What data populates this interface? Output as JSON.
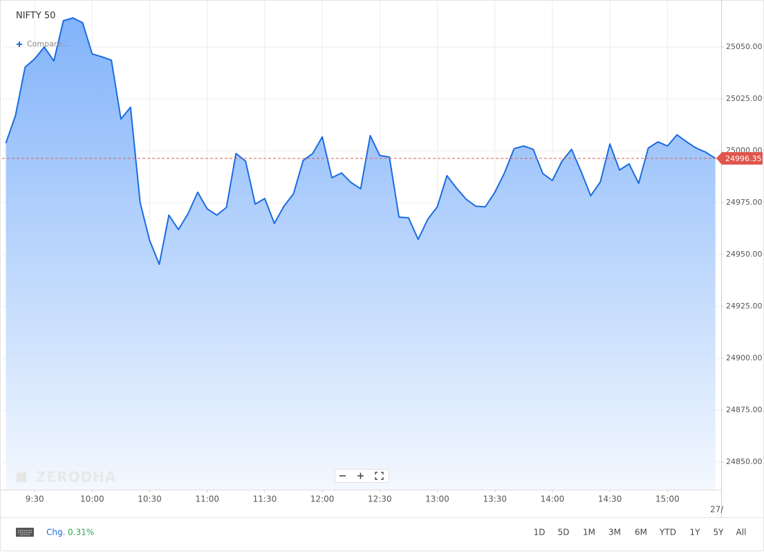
{
  "chart_data": {
    "type": "area",
    "title": "NIFTY 50",
    "compare_label": "Compare...",
    "watermark": "ZERODHA",
    "color": "#1a6be0",
    "grid": true,
    "x": [
      "9:15",
      "9:20",
      "9:25",
      "9:30",
      "9:35",
      "9:40",
      "9:45",
      "9:50",
      "9:55",
      "10:00",
      "10:05",
      "10:10",
      "10:15",
      "10:20",
      "10:25",
      "10:30",
      "10:35",
      "10:40",
      "10:45",
      "10:50",
      "10:55",
      "11:00",
      "11:05",
      "11:10",
      "11:15",
      "11:20",
      "11:25",
      "11:30",
      "11:35",
      "11:40",
      "11:45",
      "11:50",
      "11:55",
      "12:00",
      "12:05",
      "12:10",
      "12:15",
      "12:20",
      "12:25",
      "12:30",
      "12:35",
      "12:40",
      "12:45",
      "12:50",
      "12:55",
      "13:00",
      "13:05",
      "13:10",
      "13:15",
      "13:20",
      "13:25",
      "13:30",
      "13:35",
      "13:40",
      "13:45",
      "13:50",
      "13:55",
      "14:00",
      "14:05",
      "14:10",
      "14:15",
      "14:20",
      "14:25",
      "14:30",
      "14:35",
      "14:40",
      "14:45",
      "14:50",
      "14:55",
      "15:00",
      "15:05",
      "15:10",
      "15:15",
      "15:20",
      "15:25"
    ],
    "values": [
      25003.7,
      25017,
      25040.3,
      25044.3,
      25050,
      25043.3,
      25062.7,
      25064,
      25061.7,
      25046.7,
      25045.3,
      25043.7,
      25015.3,
      25021,
      24975,
      24956.7,
      24945.3,
      24969,
      24962,
      24969.7,
      24980,
      24972,
      24969,
      24972.7,
      24998.7,
      24995,
      24974.3,
      24977,
      24965,
      24973.3,
      24979.3,
      24995.3,
      24998.7,
      25006.7,
      24987,
      24989.3,
      24984.7,
      24981.7,
      25007.3,
      24997.7,
      24997,
      24968,
      24967.7,
      24957.3,
      24967,
      24973,
      24988,
      24982,
      24976.7,
      24973.3,
      24973,
      24980,
      24989.3,
      25001,
      25002.3,
      25000.7,
      24989,
      24985.7,
      24995,
      25000.7,
      24990,
      24978.3,
      24985,
      25003.3,
      24990.7,
      24993.7,
      24984.3,
      25001.3,
      25004.3,
      25002.3,
      25007.7,
      25004.3,
      25001.3,
      24999.3,
      24996.35
    ],
    "xlim": [
      "9:13",
      "15:28"
    ],
    "xticks": [
      "9:30",
      "10:00",
      "10:30",
      "11:00",
      "11:30",
      "12:00",
      "12:30",
      "13:00",
      "13:30",
      "14:00",
      "14:30",
      "15:00"
    ],
    "x_edge_label": "27/",
    "ylim": [
      24836.67,
      25072.67
    ],
    "yticks": [
      {
        "value": 24850,
        "label": "24850.00"
      },
      {
        "value": 24875,
        "label": "24875.00"
      },
      {
        "value": 24900,
        "label": "24900.00"
      },
      {
        "value": 24925,
        "label": "24925.00"
      },
      {
        "value": 24950,
        "label": "24950.00"
      },
      {
        "value": 24975,
        "label": "24975.00"
      },
      {
        "value": 25000,
        "label": "25000.00"
      },
      {
        "value": 25025,
        "label": "25025.00"
      },
      {
        "value": 25050,
        "label": "25050.00"
      }
    ],
    "change_label": "Chg.",
    "change_value": "0.31%",
    "ranges": [
      "1D",
      "5D",
      "1M",
      "3M",
      "6M",
      "YTD",
      "1Y",
      "5Y",
      "All"
    ]
  }
}
